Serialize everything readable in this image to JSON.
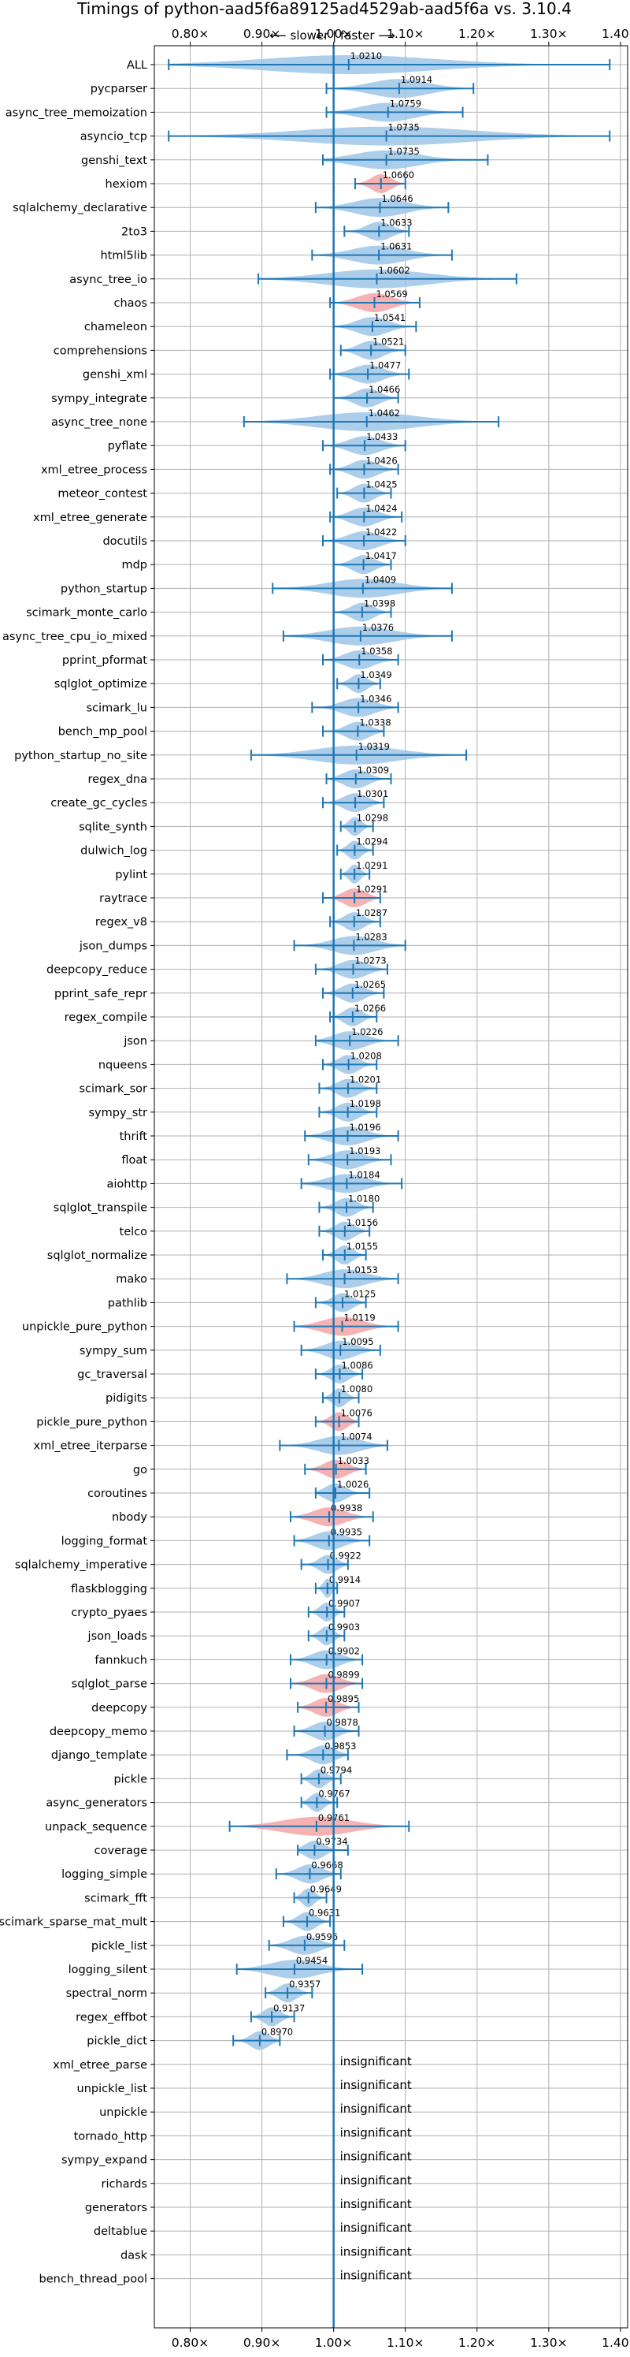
{
  "chart_data": {
    "type": "violin",
    "title": "Timings of python-aad5f6a89125ad4529ab-aad5f6a vs. 3.10.4",
    "direction_label": "⟵ slower | faster ⟶",
    "xlim": [
      0.75,
      1.41
    ],
    "x_ticks": [
      0.8,
      0.9,
      1.0,
      1.1,
      1.2,
      1.3,
      1.4
    ],
    "x_tick_labels": [
      "0.80×",
      "0.90×",
      "1.00×",
      "1.10×",
      "1.20×",
      "1.30×",
      "1.40×"
    ],
    "grid": true,
    "colors": {
      "faster": "#9ec5e6",
      "slower": "#f4a3a6",
      "line": "#1f77b4"
    },
    "insignificant_label": "insignificant",
    "benchmarks": [
      {
        "name": "ALL",
        "value": 1.021,
        "label": "1.0210",
        "min": 0.77,
        "max": 1.385,
        "color": "faster"
      },
      {
        "name": "pycparser",
        "value": 1.0914,
        "label": "1.0914",
        "min": 0.99,
        "max": 1.195,
        "color": "faster"
      },
      {
        "name": "async_tree_memoization",
        "value": 1.0759,
        "label": "1.0759",
        "min": 0.99,
        "max": 1.18,
        "color": "faster"
      },
      {
        "name": "asyncio_tcp",
        "value": 1.0735,
        "label": "1.0735",
        "min": 0.77,
        "max": 1.385,
        "color": "faster"
      },
      {
        "name": "genshi_text",
        "value": 1.0735,
        "label": "1.0735",
        "min": 0.985,
        "max": 1.215,
        "color": "faster"
      },
      {
        "name": "hexiom",
        "value": 1.066,
        "label": "1.0660",
        "min": 1.03,
        "max": 1.1,
        "color": "slower"
      },
      {
        "name": "sqlalchemy_declarative",
        "value": 1.0646,
        "label": "1.0646",
        "min": 0.975,
        "max": 1.16,
        "color": "faster"
      },
      {
        "name": "2to3",
        "value": 1.0633,
        "label": "1.0633",
        "min": 1.015,
        "max": 1.105,
        "color": "faster"
      },
      {
        "name": "html5lib",
        "value": 1.0631,
        "label": "1.0631",
        "min": 0.97,
        "max": 1.165,
        "color": "faster"
      },
      {
        "name": "async_tree_io",
        "value": 1.0602,
        "label": "1.0602",
        "min": 0.895,
        "max": 1.255,
        "color": "faster"
      },
      {
        "name": "chaos",
        "value": 1.0569,
        "label": "1.0569",
        "min": 0.995,
        "max": 1.12,
        "color": "slower"
      },
      {
        "name": "chameleon",
        "value": 1.0541,
        "label": "1.0541",
        "min": 1.0,
        "max": 1.115,
        "color": "faster"
      },
      {
        "name": "comprehensions",
        "value": 1.0521,
        "label": "1.0521",
        "min": 1.01,
        "max": 1.1,
        "color": "faster"
      },
      {
        "name": "genshi_xml",
        "value": 1.0477,
        "label": "1.0477",
        "min": 0.995,
        "max": 1.105,
        "color": "faster"
      },
      {
        "name": "sympy_integrate",
        "value": 1.0466,
        "label": "1.0466",
        "min": 1.0,
        "max": 1.09,
        "color": "faster"
      },
      {
        "name": "async_tree_none",
        "value": 1.0462,
        "label": "1.0462",
        "min": 0.875,
        "max": 1.23,
        "color": "faster"
      },
      {
        "name": "pyflate",
        "value": 1.0433,
        "label": "1.0433",
        "min": 0.985,
        "max": 1.1,
        "color": "faster"
      },
      {
        "name": "xml_etree_process",
        "value": 1.0426,
        "label": "1.0426",
        "min": 0.995,
        "max": 1.09,
        "color": "faster"
      },
      {
        "name": "meteor_contest",
        "value": 1.0425,
        "label": "1.0425",
        "min": 1.005,
        "max": 1.08,
        "color": "faster"
      },
      {
        "name": "xml_etree_generate",
        "value": 1.0424,
        "label": "1.0424",
        "min": 0.995,
        "max": 1.095,
        "color": "faster"
      },
      {
        "name": "docutils",
        "value": 1.0422,
        "label": "1.0422",
        "min": 0.985,
        "max": 1.1,
        "color": "faster"
      },
      {
        "name": "mdp",
        "value": 1.0417,
        "label": "1.0417",
        "min": 1.0,
        "max": 1.08,
        "color": "faster"
      },
      {
        "name": "python_startup",
        "value": 1.0409,
        "label": "1.0409",
        "min": 0.915,
        "max": 1.165,
        "color": "faster"
      },
      {
        "name": "scimark_monte_carlo",
        "value": 1.0398,
        "label": "1.0398",
        "min": 1.0,
        "max": 1.08,
        "color": "faster"
      },
      {
        "name": "async_tree_cpu_io_mixed",
        "value": 1.0376,
        "label": "1.0376",
        "min": 0.93,
        "max": 1.165,
        "color": "faster"
      },
      {
        "name": "pprint_pformat",
        "value": 1.0358,
        "label": "1.0358",
        "min": 0.985,
        "max": 1.09,
        "color": "faster"
      },
      {
        "name": "sqlglot_optimize",
        "value": 1.0349,
        "label": "1.0349",
        "min": 1.005,
        "max": 1.065,
        "color": "faster"
      },
      {
        "name": "scimark_lu",
        "value": 1.0346,
        "label": "1.0346",
        "min": 0.97,
        "max": 1.09,
        "color": "faster"
      },
      {
        "name": "bench_mp_pool",
        "value": 1.0338,
        "label": "1.0338",
        "min": 0.985,
        "max": 1.07,
        "color": "faster"
      },
      {
        "name": "python_startup_no_site",
        "value": 1.0319,
        "label": "1.0319",
        "min": 0.885,
        "max": 1.185,
        "color": "faster"
      },
      {
        "name": "regex_dna",
        "value": 1.0309,
        "label": "1.0309",
        "min": 0.99,
        "max": 1.08,
        "color": "faster"
      },
      {
        "name": "create_gc_cycles",
        "value": 1.0301,
        "label": "1.0301",
        "min": 0.985,
        "max": 1.07,
        "color": "faster"
      },
      {
        "name": "sqlite_synth",
        "value": 1.0298,
        "label": "1.0298",
        "min": 1.01,
        "max": 1.055,
        "color": "faster"
      },
      {
        "name": "dulwich_log",
        "value": 1.0294,
        "label": "1.0294",
        "min": 1.005,
        "max": 1.055,
        "color": "faster"
      },
      {
        "name": "pylint",
        "value": 1.0291,
        "label": "1.0291",
        "min": 1.01,
        "max": 1.05,
        "color": "faster"
      },
      {
        "name": "raytrace",
        "value": 1.0291,
        "label": "1.0291",
        "min": 0.985,
        "max": 1.065,
        "color": "slower"
      },
      {
        "name": "regex_v8",
        "value": 1.0287,
        "label": "1.0287",
        "min": 0.995,
        "max": 1.065,
        "color": "faster"
      },
      {
        "name": "json_dumps",
        "value": 1.0283,
        "label": "1.0283",
        "min": 0.945,
        "max": 1.1,
        "color": "faster"
      },
      {
        "name": "deepcopy_reduce",
        "value": 1.0273,
        "label": "1.0273",
        "min": 0.975,
        "max": 1.075,
        "color": "faster"
      },
      {
        "name": "pprint_safe_repr",
        "value": 1.0265,
        "label": "1.0265",
        "min": 0.985,
        "max": 1.07,
        "color": "faster"
      },
      {
        "name": "regex_compile",
        "value": 1.0266,
        "label": "1.0266",
        "min": 0.995,
        "max": 1.06,
        "color": "faster"
      },
      {
        "name": "json",
        "value": 1.0226,
        "label": "1.0226",
        "min": 0.975,
        "max": 1.09,
        "color": "faster"
      },
      {
        "name": "nqueens",
        "value": 1.0208,
        "label": "1.0208",
        "min": 0.985,
        "max": 1.06,
        "color": "faster"
      },
      {
        "name": "scimark_sor",
        "value": 1.0201,
        "label": "1.0201",
        "min": 0.98,
        "max": 1.06,
        "color": "faster"
      },
      {
        "name": "sympy_str",
        "value": 1.0198,
        "label": "1.0198",
        "min": 0.98,
        "max": 1.06,
        "color": "faster"
      },
      {
        "name": "thrift",
        "value": 1.0196,
        "label": "1.0196",
        "min": 0.96,
        "max": 1.09,
        "color": "faster"
      },
      {
        "name": "float",
        "value": 1.0193,
        "label": "1.0193",
        "min": 0.965,
        "max": 1.08,
        "color": "faster"
      },
      {
        "name": "aiohttp",
        "value": 1.0184,
        "label": "1.0184",
        "min": 0.955,
        "max": 1.095,
        "color": "faster"
      },
      {
        "name": "sqlglot_transpile",
        "value": 1.018,
        "label": "1.0180",
        "min": 0.98,
        "max": 1.055,
        "color": "faster"
      },
      {
        "name": "telco",
        "value": 1.0156,
        "label": "1.0156",
        "min": 0.98,
        "max": 1.05,
        "color": "faster"
      },
      {
        "name": "sqlglot_normalize",
        "value": 1.0155,
        "label": "1.0155",
        "min": 0.985,
        "max": 1.045,
        "color": "faster"
      },
      {
        "name": "mako",
        "value": 1.0153,
        "label": "1.0153",
        "min": 0.935,
        "max": 1.09,
        "color": "faster"
      },
      {
        "name": "pathlib",
        "value": 1.0125,
        "label": "1.0125",
        "min": 0.975,
        "max": 1.045,
        "color": "faster"
      },
      {
        "name": "unpickle_pure_python",
        "value": 1.0119,
        "label": "1.0119",
        "min": 0.945,
        "max": 1.09,
        "color": "slower"
      },
      {
        "name": "sympy_sum",
        "value": 1.0095,
        "label": "1.0095",
        "min": 0.955,
        "max": 1.065,
        "color": "faster"
      },
      {
        "name": "gc_traversal",
        "value": 1.0086,
        "label": "1.0086",
        "min": 0.975,
        "max": 1.04,
        "color": "faster"
      },
      {
        "name": "pidigits",
        "value": 1.008,
        "label": "1.0080",
        "min": 0.985,
        "max": 1.035,
        "color": "faster"
      },
      {
        "name": "pickle_pure_python",
        "value": 1.0076,
        "label": "1.0076",
        "min": 0.975,
        "max": 1.035,
        "color": "slower"
      },
      {
        "name": "xml_etree_iterparse",
        "value": 1.0074,
        "label": "1.0074",
        "min": 0.925,
        "max": 1.075,
        "color": "faster"
      },
      {
        "name": "go",
        "value": 1.0033,
        "label": "1.0033",
        "min": 0.96,
        "max": 1.045,
        "color": "slower"
      },
      {
        "name": "coroutines",
        "value": 1.0026,
        "label": "1.0026",
        "min": 0.975,
        "max": 1.05,
        "color": "faster"
      },
      {
        "name": "nbody",
        "value": 0.9938,
        "label": "0.9938",
        "min": 0.94,
        "max": 1.055,
        "color": "slower"
      },
      {
        "name": "logging_format",
        "value": 0.9935,
        "label": "0.9935",
        "min": 0.945,
        "max": 1.05,
        "color": "faster"
      },
      {
        "name": "sqlalchemy_imperative",
        "value": 0.9922,
        "label": "0.9922",
        "min": 0.955,
        "max": 1.02,
        "color": "faster"
      },
      {
        "name": "flaskblogging",
        "value": 0.9914,
        "label": "0.9914",
        "min": 0.975,
        "max": 1.005,
        "color": "faster"
      },
      {
        "name": "crypto_pyaes",
        "value": 0.9907,
        "label": "0.9907",
        "min": 0.965,
        "max": 1.015,
        "color": "faster"
      },
      {
        "name": "json_loads",
        "value": 0.9903,
        "label": "0.9903",
        "min": 0.965,
        "max": 1.015,
        "color": "faster"
      },
      {
        "name": "fannkuch",
        "value": 0.9902,
        "label": "0.9902",
        "min": 0.94,
        "max": 1.04,
        "color": "faster"
      },
      {
        "name": "sqlglot_parse",
        "value": 0.9899,
        "label": "0.9899",
        "min": 0.94,
        "max": 1.04,
        "color": "slower"
      },
      {
        "name": "deepcopy",
        "value": 0.9895,
        "label": "0.9895",
        "min": 0.95,
        "max": 1.035,
        "color": "slower"
      },
      {
        "name": "deepcopy_memo",
        "value": 0.9878,
        "label": "0.9878",
        "min": 0.945,
        "max": 1.035,
        "color": "faster"
      },
      {
        "name": "django_template",
        "value": 0.9853,
        "label": "0.9853",
        "min": 0.935,
        "max": 1.02,
        "color": "faster"
      },
      {
        "name": "pickle",
        "value": 0.9794,
        "label": "0.9794",
        "min": 0.955,
        "max": 1.01,
        "color": "faster"
      },
      {
        "name": "async_generators",
        "value": 0.9767,
        "label": "0.9767",
        "min": 0.955,
        "max": 1.005,
        "color": "faster"
      },
      {
        "name": "unpack_sequence",
        "value": 0.9761,
        "label": "0.9761",
        "min": 0.855,
        "max": 1.105,
        "color": "slower"
      },
      {
        "name": "coverage",
        "value": 0.9734,
        "label": "0.9734",
        "min": 0.95,
        "max": 1.02,
        "color": "faster"
      },
      {
        "name": "logging_simple",
        "value": 0.9668,
        "label": "0.9668",
        "min": 0.92,
        "max": 1.01,
        "color": "faster"
      },
      {
        "name": "scimark_fft",
        "value": 0.9649,
        "label": "0.9649",
        "min": 0.945,
        "max": 0.99,
        "color": "faster"
      },
      {
        "name": "scimark_sparse_mat_mult",
        "value": 0.9631,
        "label": "0.9631",
        "min": 0.93,
        "max": 0.995,
        "color": "faster"
      },
      {
        "name": "pickle_list",
        "value": 0.9596,
        "label": "0.9596",
        "min": 0.91,
        "max": 1.015,
        "color": "faster"
      },
      {
        "name": "logging_silent",
        "value": 0.9454,
        "label": "0.9454",
        "min": 0.865,
        "max": 1.04,
        "color": "faster"
      },
      {
        "name": "spectral_norm",
        "value": 0.9357,
        "label": "0.9357",
        "min": 0.905,
        "max": 0.97,
        "color": "faster"
      },
      {
        "name": "regex_effbot",
        "value": 0.9137,
        "label": "0.9137",
        "min": 0.885,
        "max": 0.945,
        "color": "faster"
      },
      {
        "name": "pickle_dict",
        "value": 0.897,
        "label": "0.8970",
        "min": 0.86,
        "max": 0.925,
        "color": "faster"
      },
      {
        "name": "xml_etree_parse",
        "value": null,
        "label": "insignificant"
      },
      {
        "name": "unpickle_list",
        "value": null,
        "label": "insignificant"
      },
      {
        "name": "unpickle",
        "value": null,
        "label": "insignificant"
      },
      {
        "name": "tornado_http",
        "value": null,
        "label": "insignificant"
      },
      {
        "name": "sympy_expand",
        "value": null,
        "label": "insignificant"
      },
      {
        "name": "richards",
        "value": null,
        "label": "insignificant"
      },
      {
        "name": "generators",
        "value": null,
        "label": "insignificant"
      },
      {
        "name": "deltablue",
        "value": null,
        "label": "insignificant"
      },
      {
        "name": "dask",
        "value": null,
        "label": "insignificant"
      },
      {
        "name": "bench_thread_pool",
        "value": null,
        "label": "insignificant"
      }
    ]
  }
}
